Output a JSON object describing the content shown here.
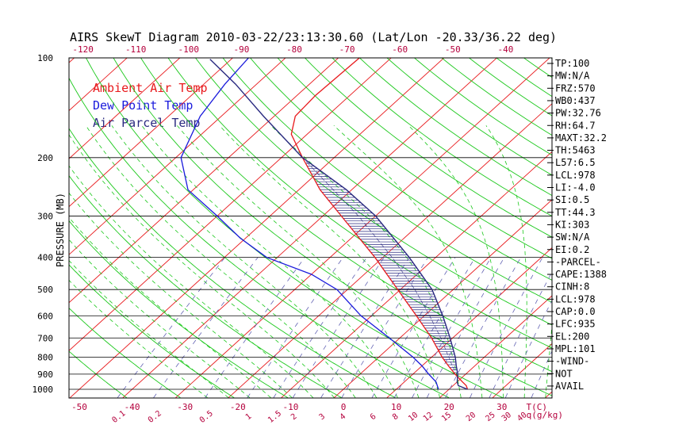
{
  "chart_data": {
    "type": "line",
    "title": "AIRS SkewT Diagram 2010-03-22/23:13:30.60 (Lat/Lon -20.33/36.22 deg)",
    "ylabel": "PRESSURE (MB)",
    "xlabel": "T(C)",
    "mixing_ratio_unit": "q(g/kg)",
    "y_scale": "log-pressure",
    "ylim": [
      1050,
      100
    ],
    "xlim": [
      -50,
      35
    ],
    "pressure_ticks": [
      100,
      200,
      300,
      400,
      500,
      600,
      700,
      800,
      900,
      1000
    ],
    "pressure_tick_labels": [
      "100",
      "200",
      "300",
      "400",
      "500",
      "600",
      "700",
      "800",
      "900",
      "1000"
    ],
    "bottom_temp_ticks": [
      -50,
      -40,
      -30,
      -20,
      -10,
      0,
      10,
      20,
      30
    ],
    "bottom_temp_tick_labels": [
      "-50",
      "-40",
      "-30",
      "-20",
      "-10",
      "0",
      "10",
      "20",
      "30"
    ],
    "top_temp_ticks": [
      -120,
      -110,
      -100,
      -90,
      -80,
      -70,
      -60,
      -50,
      -40
    ],
    "top_temp_tick_labels": [
      "-120",
      "-110",
      "-100",
      "-90",
      "-80",
      "-70",
      "-60",
      "-50",
      "-40"
    ],
    "mixing_ratio_labels": [
      "0.1",
      "0.2",
      "0.5",
      "1",
      "1.5",
      "2",
      "3",
      "4",
      "6",
      "8",
      "10",
      "12",
      "15",
      "20",
      "25",
      "30",
      "40"
    ],
    "legend": [
      {
        "name": "Ambient Air Temp",
        "color": "#e8191c"
      },
      {
        "name": "Dew Point Temp",
        "color": "#1a1adc"
      },
      {
        "name": "Air Parcel Temp",
        "color": "#2a2a80"
      }
    ],
    "legend_position": "top-left",
    "grid": true,
    "series": [
      {
        "name": "Ambient Air Temp",
        "color": "#e8191c",
        "points": [
          [
            1000,
            23.5
          ],
          [
            975,
            22.5
          ],
          [
            950,
            21.0
          ],
          [
            900,
            18.0
          ],
          [
            850,
            15.0
          ],
          [
            800,
            12.0
          ],
          [
            700,
            6.0
          ],
          [
            600,
            -1.5
          ],
          [
            500,
            -10.5
          ],
          [
            400,
            -21.5
          ],
          [
            300,
            -36.5
          ],
          [
            250,
            -46.0
          ],
          [
            200,
            -56.0
          ],
          [
            170,
            -63.0
          ],
          [
            150,
            -66.0
          ],
          [
            130,
            -66.5
          ],
          [
            100,
            -66.0
          ]
        ]
      },
      {
        "name": "Dew Point Temp",
        "color": "#1a1adc",
        "points": [
          [
            1000,
            18.0
          ],
          [
            950,
            16.0
          ],
          [
            900,
            13.0
          ],
          [
            850,
            10.0
          ],
          [
            800,
            6.5
          ],
          [
            700,
            -2.0
          ],
          [
            600,
            -12.0
          ],
          [
            500,
            -22.0
          ],
          [
            450,
            -30.0
          ],
          [
            400,
            -42.0
          ],
          [
            350,
            -51.0
          ],
          [
            300,
            -60.0
          ],
          [
            250,
            -71.0
          ],
          [
            200,
            -79.0
          ],
          [
            150,
            -84.0
          ],
          [
            120,
            -86.0
          ],
          [
            100,
            -87.0
          ]
        ]
      },
      {
        "name": "Air Parcel Temp",
        "color": "#2a2a80",
        "points": [
          [
            1000,
            23.5
          ],
          [
            975,
            21.0
          ],
          [
            950,
            20.0
          ],
          [
            900,
            18.5
          ],
          [
            850,
            16.5
          ],
          [
            800,
            14.5
          ],
          [
            700,
            9.5
          ],
          [
            600,
            3.5
          ],
          [
            500,
            -4.0
          ],
          [
            400,
            -15.0
          ],
          [
            300,
            -30.0
          ],
          [
            250,
            -41.0
          ],
          [
            200,
            -56.0
          ],
          [
            150,
            -72.0
          ],
          [
            120,
            -84.0
          ],
          [
            101,
            -94.0
          ]
        ]
      }
    ],
    "stats": [
      "TP:100",
      "MW:N/A",
      "FRZ:570",
      "WB0:437",
      "PW:32.76",
      "RH:64.7",
      "MAXT:32.2",
      "TH:5463",
      "L57:6.5",
      "LCL:978",
      "LI:-4.0",
      "SI:0.5",
      "TT:44.3",
      "KI:303",
      "SW:N/A",
      "EI:0.2",
      "-PARCEL-",
      "CAPE:1388",
      "CINH:8",
      "LCL:978",
      "CAP:0.0",
      "LFC:935",
      "EL:200",
      "MPL:101",
      "-WIND-",
      "NOT",
      "AVAIL"
    ],
    "colors": {
      "isotherm": "#e8191c",
      "dry_adiabat": "#1bc81b",
      "moist_adiabat": "#1bc81b",
      "mixing_ratio": "#6464b4",
      "isobar": "#000000",
      "axis_label": "#b4003c",
      "hatch": "#2a2a80"
    }
  }
}
